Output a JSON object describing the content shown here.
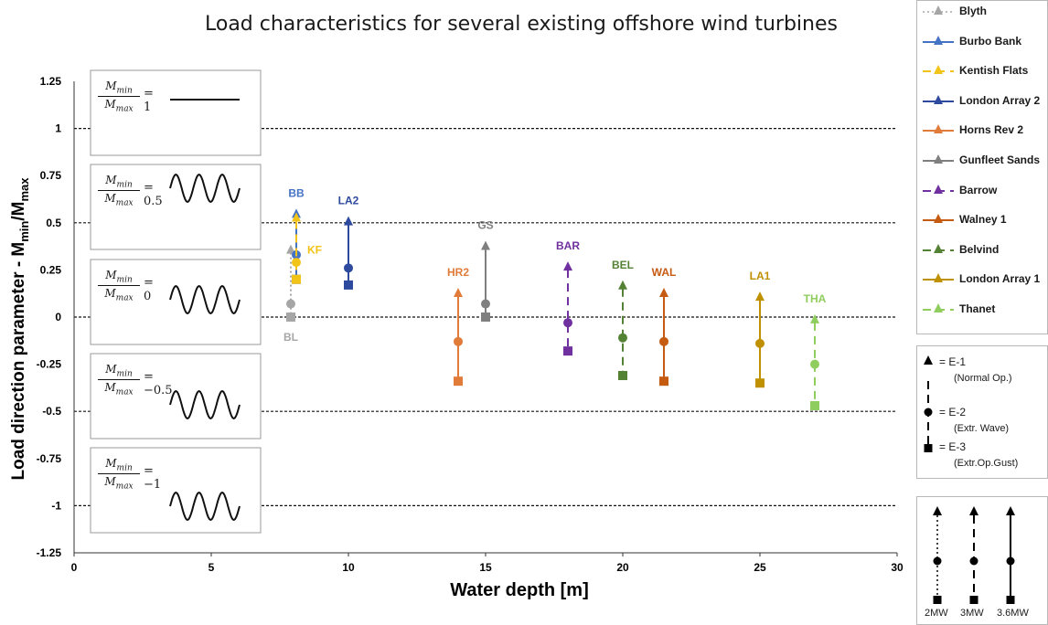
{
  "chart_data": {
    "type": "scatter",
    "title": "Load characteristics for several existing  offshore wind turbines",
    "xlabel": "Water depth [m]",
    "ylabel_main": "Load direction parameter - M",
    "ylabel_sub1": "min",
    "ylabel_sep": "/M",
    "ylabel_sub2": "max",
    "xlim": [
      0,
      30
    ],
    "ylim": [
      -1.25,
      1.25
    ],
    "x_ticks": [
      0,
      5,
      10,
      15,
      20,
      25,
      30
    ],
    "x_tick_labels": [
      "0",
      "5",
      "10",
      "15",
      "20",
      "25",
      "30"
    ],
    "y_ticks": [
      1.25,
      1,
      0.75,
      0.5,
      0.25,
      0,
      -0.25,
      -0.5,
      -0.75,
      -1,
      -1.25
    ],
    "y_tick_labels": [
      "1.25",
      "1",
      "0.75",
      "0.5",
      "0.25",
      "0",
      "-0.25",
      "-0.5",
      "-0.75",
      "-1",
      "-1.25"
    ],
    "reference_lines": [
      1,
      0.5,
      0,
      -0.5,
      -1
    ],
    "series": [
      {
        "name": "Blyth",
        "label": "BL",
        "color": "#a6a6a6",
        "x": 7.9,
        "e1": 0.38,
        "e2": 0.07,
        "e3": 0.0,
        "rating": "2MW",
        "label_pos": "below"
      },
      {
        "name": "Burbo Bank",
        "label": "BB",
        "color": "#4472c4",
        "x": 8.1,
        "e1": 0.57,
        "e2": 0.33,
        "e3": 0.2,
        "rating": "3.6MW",
        "label_pos": "above"
      },
      {
        "name": "Kentish Flats",
        "label": "KF",
        "color": "#f2c318",
        "x": 8.1,
        "e1": 0.55,
        "e2": 0.29,
        "e3": 0.2,
        "rating": "3MW",
        "label_pos": "right"
      },
      {
        "name": "London Array 2",
        "label": "LA2",
        "color": "#2e4a9e",
        "x": 10,
        "e1": 0.53,
        "e2": 0.26,
        "e3": 0.17,
        "rating": "3.6MW",
        "label_pos": "above"
      },
      {
        "name": "Horns Rev 2",
        "label": "HR2",
        "color": "#e07b39",
        "x": 14,
        "e1": 0.15,
        "e2": -0.13,
        "e3": -0.34,
        "rating": "3.6MW",
        "label_pos": "above"
      },
      {
        "name": "Gunfleet Sands",
        "label": "GS",
        "color": "#7f7f7f",
        "x": 15,
        "e1": 0.4,
        "e2": 0.07,
        "e3": 0.0,
        "rating": "3.6MW",
        "label_pos": "above"
      },
      {
        "name": "Barrow",
        "label": "BAR",
        "color": "#7030a0",
        "x": 18,
        "e1": 0.29,
        "e2": -0.03,
        "e3": -0.18,
        "rating": "3MW",
        "label_pos": "above"
      },
      {
        "name": "Walney 1",
        "label": "WAL",
        "color": "#c55a11",
        "x": 21.5,
        "e1": 0.15,
        "e2": -0.13,
        "e3": -0.34,
        "rating": "3.6MW",
        "label_pos": "above"
      },
      {
        "name": "Belvind",
        "label": "BEL",
        "color": "#548235",
        "x": 20,
        "e1": 0.19,
        "e2": -0.11,
        "e3": -0.31,
        "rating": "3MW",
        "label_pos": "above"
      },
      {
        "name": "London Array 1",
        "label": "LA1",
        "color": "#bf9000",
        "x": 25,
        "e1": 0.13,
        "e2": -0.14,
        "e3": -0.35,
        "rating": "3.6MW",
        "label_pos": "above"
      },
      {
        "name": "Thanet",
        "label": "THA",
        "color": "#8fce5e",
        "x": 27,
        "e1": 0.01,
        "e2": -0.25,
        "e3": -0.47,
        "rating": "3MW",
        "label_pos": "above"
      }
    ],
    "ratio_boxes": [
      {
        "numerator": "M",
        "numerator_sub": "min",
        "denominator": "M",
        "denominator_sub": "max",
        "value": "= 1",
        "ratio": 1
      },
      {
        "numerator": "M",
        "numerator_sub": "min",
        "denominator": "M",
        "denominator_sub": "max",
        "value": "= 0.5",
        "ratio": 0.5
      },
      {
        "numerator": "M",
        "numerator_sub": "min",
        "denominator": "M",
        "denominator_sub": "max",
        "value": "= 0",
        "ratio": 0
      },
      {
        "numerator": "M",
        "numerator_sub": "min",
        "denominator": "M",
        "denominator_sub": "max",
        "value": "= −0.5",
        "ratio": -0.5
      },
      {
        "numerator": "M",
        "numerator_sub": "min",
        "denominator": "M",
        "denominator_sub": "max",
        "value": "= −1",
        "ratio": -1
      }
    ],
    "event_legend": {
      "e1": "= E-1",
      "e1_sub": "(Normal Op.)",
      "e2": "= E-2",
      "e2_sub": "(Extr. Wave)",
      "e3": "= E-3",
      "e3_sub": "(Extr.Op.Gust)"
    },
    "line_legend": [
      "2MW",
      "3MW",
      "3.6MW"
    ]
  }
}
